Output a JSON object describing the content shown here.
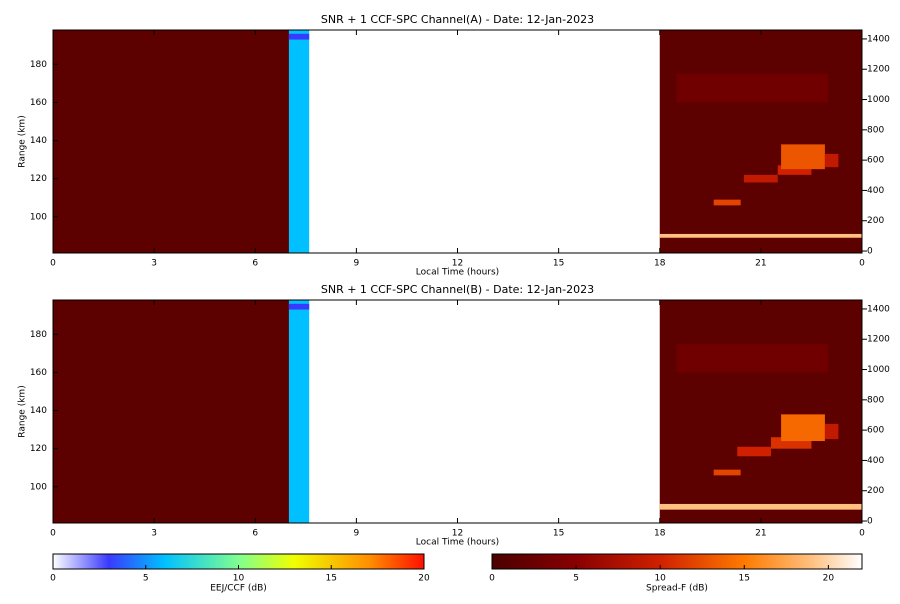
{
  "chart_data": [
    {
      "type": "heatmap",
      "title": "SNR + 1 CCF-SPC Channel(A) - Date: 12-Jan-2023",
      "xlabel": "Local Time (hours)",
      "ylabel": "Range (km)",
      "xlim": [
        0,
        24
      ],
      "xticks": [
        0,
        3,
        6,
        9,
        12,
        15,
        18,
        21,
        {
          "value": 24,
          "label": "0"
        }
      ],
      "ylim": [
        81,
        198
      ],
      "yticks": [
        100,
        120,
        140,
        160,
        180
      ],
      "y2lim": [
        -13,
        1459
      ],
      "y2ticks": [
        0,
        200,
        400,
        600,
        800,
        1000,
        1200,
        1400
      ],
      "eej_cells": [
        {
          "x": [
            7,
            7.6
          ],
          "y": [
            81,
            198
          ],
          "value": 6
        },
        {
          "x": [
            7,
            7.6
          ],
          "y": [
            193,
            196
          ],
          "value": 3
        }
      ],
      "spreadf_cells": [
        {
          "x": [
            0,
            7
          ],
          "y": [
            81,
            198
          ],
          "value": 1.5
        },
        {
          "x": [
            18,
            24
          ],
          "y": [
            81,
            198
          ],
          "value": 1.5
        },
        {
          "x": [
            18,
            24
          ],
          "y": [
            89,
            91
          ],
          "value": 19
        },
        {
          "x": [
            19.6,
            20.4
          ],
          "y": [
            106,
            109
          ],
          "value": 12
        },
        {
          "x": [
            20.5,
            21.5
          ],
          "y": [
            118,
            122
          ],
          "value": 9
        },
        {
          "x": [
            21.5,
            22.5
          ],
          "y": [
            122,
            127
          ],
          "value": 10
        },
        {
          "x": [
            21.6,
            22.9
          ],
          "y": [
            125,
            138
          ],
          "value": 13
        },
        {
          "x": [
            22.9,
            23.3
          ],
          "y": [
            126,
            133
          ],
          "value": 9
        },
        {
          "x": [
            18.5,
            23
          ],
          "y": [
            160,
            175
          ],
          "value": 3
        }
      ]
    },
    {
      "type": "heatmap",
      "title": "SNR + 1 CCF-SPC Channel(B) - Date: 12-Jan-2023",
      "xlabel": "Local Time (hours)",
      "ylabel": "Range (km)",
      "xlim": [
        0,
        24
      ],
      "xticks": [
        0,
        3,
        6,
        9,
        12,
        15,
        18,
        21,
        {
          "value": 24,
          "label": "0"
        }
      ],
      "ylim": [
        81,
        198
      ],
      "yticks": [
        100,
        120,
        140,
        160,
        180
      ],
      "y2lim": [
        -13,
        1459
      ],
      "y2ticks": [
        0,
        200,
        400,
        600,
        800,
        1000,
        1200,
        1400
      ],
      "eej_cells": [
        {
          "x": [
            7,
            7.6
          ],
          "y": [
            81,
            198
          ],
          "value": 6
        },
        {
          "x": [
            7,
            7.6
          ],
          "y": [
            193,
            196
          ],
          "value": 3
        }
      ],
      "spreadf_cells": [
        {
          "x": [
            0,
            7
          ],
          "y": [
            81,
            198
          ],
          "value": 1.5
        },
        {
          "x": [
            18,
            24
          ],
          "y": [
            81,
            198
          ],
          "value": 1.5
        },
        {
          "x": [
            18,
            24
          ],
          "y": [
            88,
            91
          ],
          "value": 19
        },
        {
          "x": [
            19.6,
            20.4
          ],
          "y": [
            106,
            109
          ],
          "value": 12
        },
        {
          "x": [
            20.3,
            21.3
          ],
          "y": [
            116,
            121
          ],
          "value": 10
        },
        {
          "x": [
            21.3,
            22.5
          ],
          "y": [
            120,
            126
          ],
          "value": 11
        },
        {
          "x": [
            21.6,
            22.9
          ],
          "y": [
            124,
            138
          ],
          "value": 14
        },
        {
          "x": [
            22.9,
            23.3
          ],
          "y": [
            125,
            133
          ],
          "value": 9
        },
        {
          "x": [
            18.5,
            23
          ],
          "y": [
            160,
            175
          ],
          "value": 3
        }
      ]
    },
    {
      "type": "colorbar",
      "label": "EEJ/CCF (dB)",
      "xlim": [
        0,
        20
      ],
      "xticks": [
        0,
        5,
        10,
        15,
        20
      ],
      "colorscale": [
        [
          0,
          "#ffffff"
        ],
        [
          3,
          "#3a3aff"
        ],
        [
          6,
          "#00c0ff"
        ],
        [
          10,
          "#80ff90"
        ],
        [
          13,
          "#f0ff00"
        ],
        [
          17,
          "#ff9000"
        ],
        [
          20,
          "#ff1000"
        ]
      ]
    },
    {
      "type": "colorbar",
      "label": "Spread-F (dB)",
      "xlim": [
        0,
        22
      ],
      "xticks": [
        0,
        5,
        10,
        15,
        20
      ],
      "colorscale": [
        [
          0,
          "#4a0000"
        ],
        [
          5,
          "#8a0000"
        ],
        [
          10,
          "#d02000"
        ],
        [
          15,
          "#ff7a00"
        ],
        [
          19,
          "#ffc080"
        ],
        [
          22,
          "#ffffff"
        ]
      ]
    }
  ]
}
